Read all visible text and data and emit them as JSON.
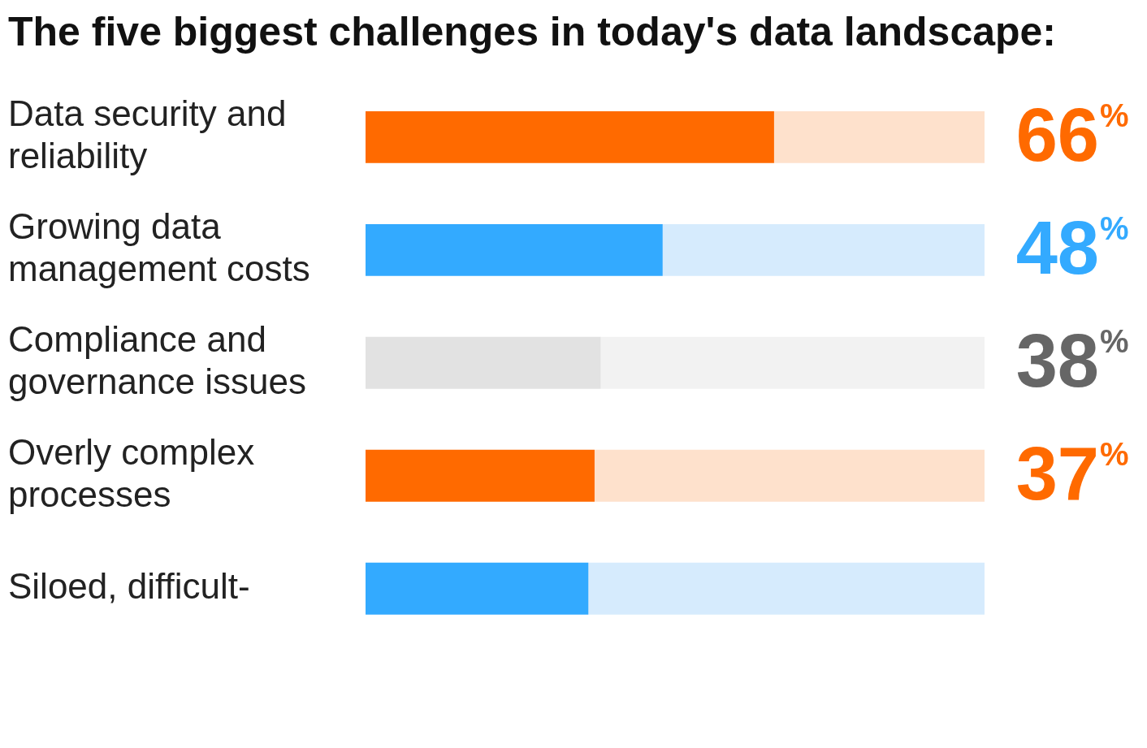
{
  "chart_data": {
    "type": "bar",
    "orientation": "horizontal",
    "stacked": true,
    "title": "The five biggest challenges in today's data landscape:",
    "categories": [
      "Data security and reliability",
      "Growing data management costs",
      "Compliance and governance issues",
      "Overly complex processes",
      "Siloed, difficult-"
    ],
    "series": [
      {
        "colors": [
          "#ff6a00",
          "#33aaff",
          "#e2e2e2",
          "#ff6a00",
          "#33aaff"
        ],
        "values": [
          66,
          48,
          38,
          37,
          36
        ],
        "value_labels": [
          "66%",
          "48%",
          "38%",
          "37%",
          null
        ]
      },
      {
        "colors": [
          "#fee1cc",
          "#d6ebfd",
          "#f2f2f2",
          "#fee1cc",
          "#d6ebfd"
        ],
        "values": [
          34,
          52,
          62,
          63,
          64
        ]
      }
    ],
    "xlim": [
      0,
      100
    ],
    "tick_labels": "y",
    "legend": false
  }
}
